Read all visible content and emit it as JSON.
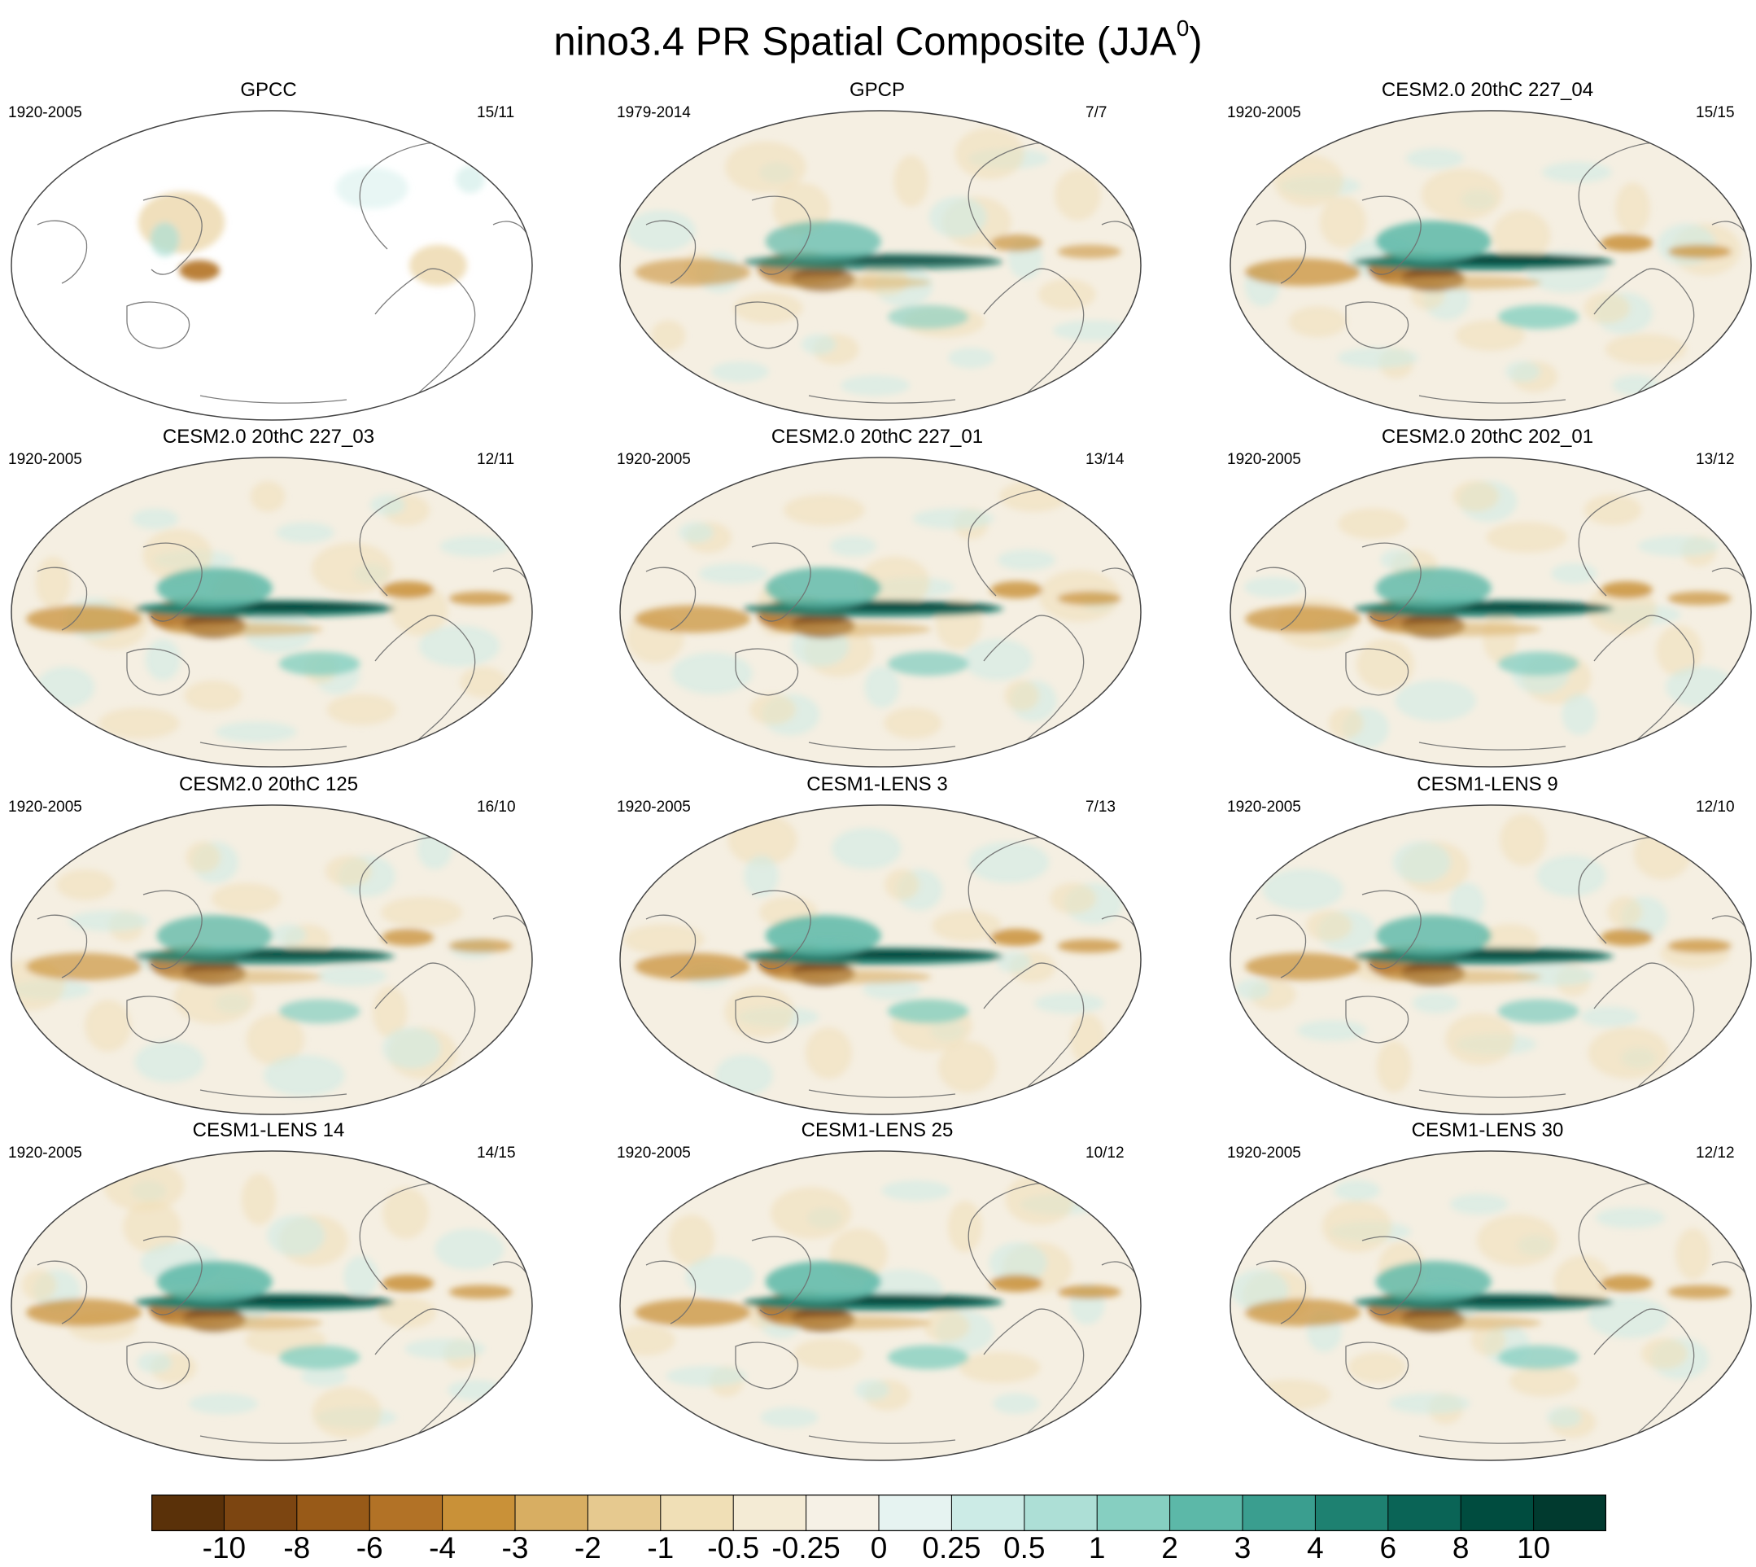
{
  "figure": {
    "title_main": "nino3.4 PR Spatial Composite (JJA",
    "title_sup": "0",
    "title_close": ")"
  },
  "panels": [
    {
      "title": "GPCC",
      "period": "1920-2005",
      "count": "15/11",
      "land_only": true,
      "strength": 0.6
    },
    {
      "title": "GPCP",
      "period": "1979-2014",
      "count": "7/7",
      "land_only": false,
      "strength": 0.8
    },
    {
      "title": "CESM2.0 20thC 227_04",
      "period": "1920-2005",
      "count": "15/15",
      "land_only": false,
      "strength": 1.0
    },
    {
      "title": "CESM2.0 20thC 227_03",
      "period": "1920-2005",
      "count": "12/11",
      "land_only": false,
      "strength": 1.0
    },
    {
      "title": "CESM2.0 20thC 227_01",
      "period": "1920-2005",
      "count": "13/14",
      "land_only": false,
      "strength": 0.95
    },
    {
      "title": "CESM2.0 20thC 202_01",
      "period": "1920-2005",
      "count": "13/12",
      "land_only": false,
      "strength": 0.95
    },
    {
      "title": "CESM2.0 20thC 125",
      "period": "1920-2005",
      "count": "16/10",
      "land_only": false,
      "strength": 0.9
    },
    {
      "title": "CESM1-LENS 3",
      "period": "1920-2005",
      "count": "7/13",
      "land_only": false,
      "strength": 1.0
    },
    {
      "title": "CESM1-LENS 9",
      "period": "1920-2005",
      "count": "12/10",
      "land_only": false,
      "strength": 0.95
    },
    {
      "title": "CESM1-LENS 14",
      "period": "1920-2005",
      "count": "14/15",
      "land_only": false,
      "strength": 1.0
    },
    {
      "title": "CESM1-LENS 25",
      "period": "1920-2005",
      "count": "10/12",
      "land_only": false,
      "strength": 1.0
    },
    {
      "title": "CESM1-LENS 30",
      "period": "1920-2005",
      "count": "12/12",
      "land_only": false,
      "strength": 0.95
    }
  ],
  "colorbar": {
    "labels": [
      "-10",
      "-8",
      "-6",
      "-4",
      "-3",
      "-2",
      "-1",
      "-0.5",
      "-0.25",
      "0",
      "0.25",
      "0.5",
      "1",
      "2",
      "3",
      "4",
      "6",
      "8",
      "10"
    ],
    "colors": [
      "#5a3109",
      "#7c4511",
      "#985a18",
      "#b27226",
      "#c99138",
      "#d8ae62",
      "#e6c98f",
      "#f0dfb6",
      "#f4ebd5",
      "#f6f1e6",
      "#e6f3f1",
      "#ccebe6",
      "#addfd6",
      "#86cfc1",
      "#5cb8a8",
      "#3a9e8f",
      "#1e8171",
      "#0a6456",
      "#004c3f",
      "#013a2f"
    ]
  }
}
